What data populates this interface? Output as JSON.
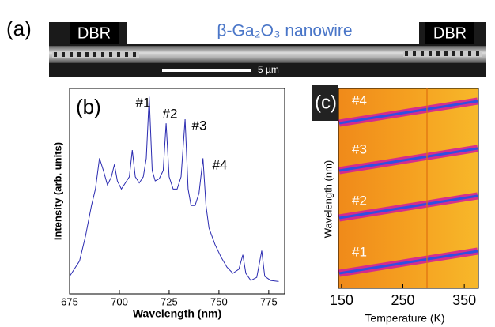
{
  "figure_a": {
    "panel_label": "(a)",
    "title": "β-Ga₂O₃ nanowire",
    "dbr_left": "DBR",
    "dbr_right": "DBR",
    "scale_bar": "5 µm"
  },
  "chart_data": [
    {
      "type": "line",
      "panel_label": "(b)",
      "xlabel": "Wavelength (nm)",
      "ylabel": "Intensity (arb. units)",
      "color": "#2a2ab0",
      "xlim": [
        675,
        783
      ],
      "ylim": [
        0,
        1
      ],
      "xticks": [
        675,
        700,
        725,
        750,
        775
      ],
      "annotations": [
        "#1",
        "#2",
        "#3",
        "#4"
      ],
      "x": [
        675,
        680,
        683,
        686,
        688,
        690,
        692,
        694,
        696,
        697.5,
        699,
        701,
        703,
        705,
        706.5,
        708,
        710,
        712,
        713.5,
        715,
        716.5,
        718,
        720,
        722,
        723.5,
        725,
        727,
        729,
        731,
        733,
        734.5,
        736,
        738,
        740,
        742,
        743.5,
        745,
        748,
        751,
        754,
        757,
        760,
        762,
        763.5,
        766,
        769,
        771.5,
        773,
        776,
        780
      ],
      "values": [
        0.085,
        0.16,
        0.28,
        0.43,
        0.51,
        0.66,
        0.6,
        0.53,
        0.57,
        0.63,
        0.55,
        0.51,
        0.54,
        0.57,
        0.7,
        0.57,
        0.54,
        0.57,
        0.66,
        0.96,
        0.6,
        0.55,
        0.56,
        0.6,
        0.83,
        0.57,
        0.51,
        0.51,
        0.57,
        0.85,
        0.51,
        0.43,
        0.43,
        0.49,
        0.66,
        0.43,
        0.32,
        0.24,
        0.18,
        0.13,
        0.1,
        0.12,
        0.19,
        0.1,
        0.065,
        0.08,
        0.21,
        0.085,
        0.065,
        0.06
      ]
    },
    {
      "type": "heatmap",
      "panel_label": "(c)",
      "xlabel": "Temperature (K)",
      "ylabel": "Wavelength (nm)",
      "xlim": [
        145,
        373
      ],
      "xticks": [
        150,
        250,
        350
      ],
      "annotations": [
        "#4",
        "#3",
        "#2",
        "#1"
      ]
    }
  ]
}
